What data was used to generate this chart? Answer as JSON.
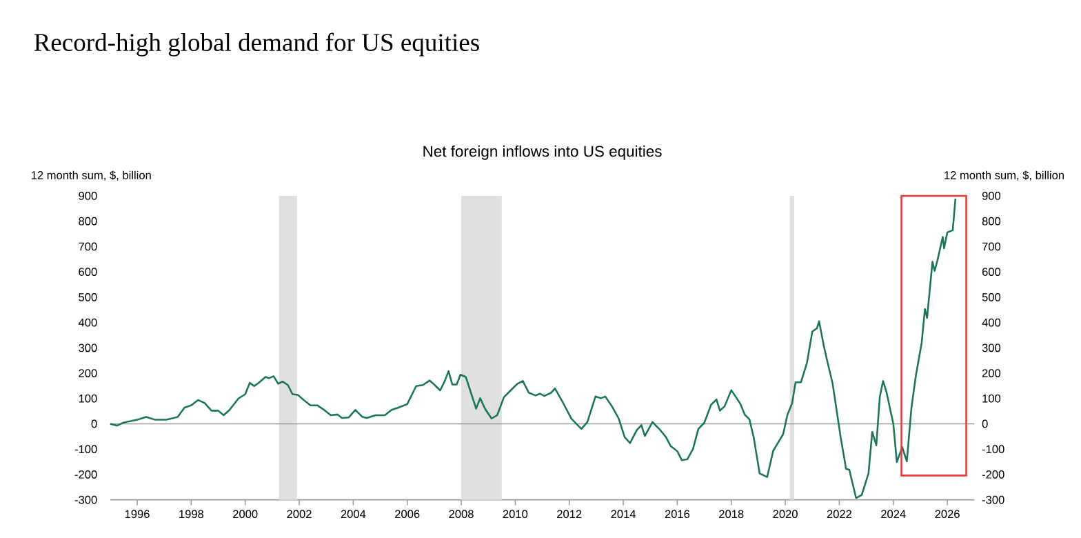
{
  "chart_data": {
    "type": "line",
    "title": "Record-high global demand for US equities",
    "subtitle": "Net foreign inflows into US equities",
    "ylabel": "12 month sum, $, billion",
    "y2label": "12 month sum, $, billion",
    "xlim": [
      1995,
      2027
    ],
    "xticks": [
      1996,
      1998,
      2000,
      2002,
      2004,
      2006,
      2008,
      2010,
      2012,
      2014,
      2016,
      2018,
      2020,
      2022,
      2024,
      2026
    ],
    "ylim": [
      -300,
      900
    ],
    "yticks": [
      -300,
      -200,
      -100,
      0,
      100,
      200,
      300,
      400,
      500,
      600,
      700,
      800,
      900
    ],
    "y2lim": [
      -300,
      900
    ],
    "y2ticks": [
      -300,
      -200,
      -100,
      0,
      100,
      200,
      300,
      400,
      500,
      600,
      700,
      800,
      900
    ],
    "series": [
      {
        "color": "#1a7458",
        "x": [
          1995.0,
          1995.25,
          1995.5,
          1996.0,
          1996.33,
          1996.67,
          1997.08,
          1997.5,
          1997.75,
          1998.0,
          1998.25,
          1998.5,
          1998.75,
          1999.0,
          1999.2,
          1999.42,
          1999.75,
          2000.0,
          2000.17,
          2000.33,
          2000.5,
          2000.75,
          2000.88,
          2001.05,
          2001.22,
          2001.38,
          2001.58,
          2001.75,
          2001.95,
          2002.17,
          2002.42,
          2002.67,
          2002.92,
          2003.17,
          2003.42,
          2003.58,
          2003.83,
          2004.08,
          2004.33,
          2004.5,
          2004.83,
          2005.17,
          2005.42,
          2005.67,
          2006.0,
          2006.33,
          2006.58,
          2006.83,
          2007.0,
          2007.22,
          2007.38,
          2007.53,
          2007.67,
          2007.83,
          2007.97,
          2008.17,
          2008.33,
          2008.55,
          2008.7,
          2008.88,
          2009.12,
          2009.33,
          2009.58,
          2009.83,
          2010.08,
          2010.28,
          2010.5,
          2010.75,
          2010.92,
          2011.08,
          2011.33,
          2011.47,
          2011.75,
          2012.08,
          2012.45,
          2012.67,
          2012.97,
          2013.17,
          2013.33,
          2013.58,
          2013.83,
          2014.05,
          2014.25,
          2014.5,
          2014.67,
          2014.8,
          2015.08,
          2015.33,
          2015.58,
          2015.75,
          2016.0,
          2016.17,
          2016.37,
          2016.58,
          2016.78,
          2017.0,
          2017.25,
          2017.45,
          2017.58,
          2017.75,
          2018.0,
          2018.33,
          2018.5,
          2018.67,
          2018.83,
          2019.05,
          2019.33,
          2019.55,
          2019.75,
          2019.92,
          2020.08,
          2020.25,
          2020.38,
          2020.58,
          2020.8,
          2021.0,
          2021.17,
          2021.25,
          2021.42,
          2021.55,
          2021.75,
          2022.05,
          2022.25,
          2022.37,
          2022.62,
          2022.83,
          2023.08,
          2023.22,
          2023.37,
          2023.5,
          2023.62,
          2023.75,
          2024.0,
          2024.13,
          2024.33,
          2024.5,
          2024.67,
          2024.83,
          2025.05,
          2025.17,
          2025.25,
          2025.45,
          2025.53,
          2025.63,
          2025.83,
          2025.88,
          2026.0,
          2026.2,
          2026.3
        ],
        "values": [
          0,
          -7,
          5,
          16,
          27,
          16,
          16,
          27,
          64,
          73,
          94,
          82,
          52,
          52,
          34,
          55,
          100,
          117,
          162,
          149,
          162,
          185,
          180,
          188,
          158,
          167,
          153,
          117,
          114,
          94,
          73,
          73,
          55,
          34,
          37,
          23,
          25,
          55,
          28,
          23,
          34,
          34,
          55,
          64,
          78,
          149,
          153,
          171,
          155,
          132,
          167,
          208,
          155,
          155,
          194,
          185,
          132,
          60,
          101,
          60,
          21,
          34,
          105,
          132,
          158,
          169,
          123,
          112,
          119,
          110,
          123,
          140,
          87,
          20,
          -20,
          7,
          108,
          101,
          108,
          69,
          21,
          -52,
          -76,
          -25,
          -5,
          -48,
          7,
          -20,
          -52,
          -87,
          -108,
          -144,
          -140,
          -100,
          -20,
          4,
          75,
          96,
          52,
          69,
          133,
          80,
          36,
          18,
          -53,
          -196,
          -210,
          -107,
          -71,
          -41,
          36,
          80,
          164,
          164,
          240,
          364,
          377,
          405,
          311,
          249,
          160,
          -53,
          -178,
          -181,
          -293,
          -281,
          -196,
          -32,
          -85,
          107,
          169,
          124,
          0,
          -151,
          -92,
          -148,
          62,
          187,
          320,
          453,
          418,
          640,
          604,
          644,
          738,
          693,
          756,
          764,
          889
        ]
      }
    ],
    "ref_lines": [
      {
        "axis": "y",
        "value": 0,
        "color": "#9a9a9a"
      }
    ],
    "bands": [
      {
        "axis": "x",
        "from": 2001.25,
        "to": 2001.92,
        "color": "#e0e0e0"
      },
      {
        "axis": "x",
        "from": 2008.0,
        "to": 2009.5,
        "color": "#e0e0e0"
      },
      {
        "axis": "x",
        "from": 2020.17,
        "to": 2020.33,
        "color": "#e0e0e0"
      }
    ]
  }
}
